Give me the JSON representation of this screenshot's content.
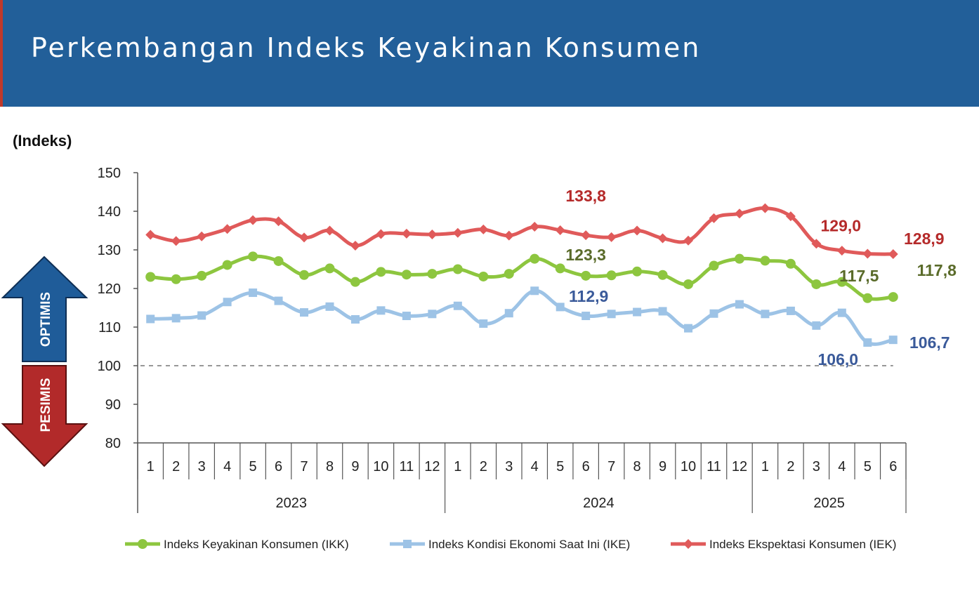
{
  "header": {
    "title": "Perkembangan Indeks Keyakinan Konsumen"
  },
  "colors": {
    "header_bg": "#225f99",
    "ikk": "#8dc63f",
    "ike": "#9dc3e6",
    "iek": "#e05a5a",
    "ikk_label": "#5a6b2a",
    "ike_label": "#3a5a9a",
    "iek_label": "#b52a2a",
    "optimis": "#1f5c99",
    "pesimis": "#b22a2a"
  },
  "chart_data": {
    "type": "line",
    "ylabel": "(Indeks)",
    "ylim": [
      80,
      150
    ],
    "yticks": [
      80,
      90,
      100,
      110,
      120,
      130,
      140,
      150
    ],
    "grid": false,
    "reference_line": {
      "value": 100,
      "style": "dashed"
    },
    "categories": [
      "1",
      "2",
      "3",
      "4",
      "5",
      "6",
      "7",
      "8",
      "9",
      "10",
      "11",
      "12",
      "1",
      "2",
      "3",
      "4",
      "5",
      "6",
      "7",
      "8",
      "9",
      "10",
      "11",
      "12",
      "1",
      "2",
      "3",
      "4",
      "5",
      "6"
    ],
    "years": [
      {
        "label": "2023",
        "months": 12
      },
      {
        "label": "2024",
        "months": 12
      },
      {
        "label": "2025",
        "months": 6
      }
    ],
    "legend_position": "bottom",
    "series": [
      {
        "name": "Indeks Keyakinan Konsumen (IKK)",
        "color": "#8dc63f",
        "marker": "circle",
        "values": [
          123.0,
          122.4,
          123.3,
          126.1,
          128.3,
          127.1,
          123.5,
          125.2,
          121.7,
          124.3,
          123.6,
          123.8,
          125.0,
          123.1,
          123.8,
          127.7,
          125.2,
          123.3,
          123.4,
          124.4,
          123.5,
          121.1,
          125.9,
          127.7,
          127.2,
          126.4,
          121.1,
          121.7,
          117.5,
          117.8
        ]
      },
      {
        "name": "Indeks Kondisi Ekonomi Saat Ini (IKE)",
        "color": "#9dc3e6",
        "marker": "square",
        "values": [
          112.1,
          112.3,
          113.0,
          116.5,
          118.9,
          116.8,
          113.8,
          115.3,
          112.0,
          114.3,
          112.9,
          113.4,
          115.5,
          110.9,
          113.6,
          119.4,
          115.2,
          112.9,
          113.4,
          113.9,
          114.1,
          109.7,
          113.5,
          115.9,
          113.4,
          114.2,
          110.4,
          113.7,
          106.0,
          106.7
        ]
      },
      {
        "name": "Indeks Ekspektasi Konsumen (IEK)",
        "color": "#e05a5a",
        "marker": "diamond",
        "values": [
          133.9,
          132.3,
          133.5,
          135.4,
          137.7,
          137.4,
          133.2,
          135.0,
          131.1,
          134.1,
          134.2,
          134.0,
          134.4,
          135.3,
          133.7,
          136.0,
          135.1,
          133.8,
          133.3,
          135.0,
          133.0,
          132.4,
          138.2,
          139.4,
          140.8,
          138.7,
          131.6,
          129.8,
          129.0,
          128.9
        ]
      }
    ],
    "annotations": [
      {
        "text": "133,8",
        "series": 2,
        "index": 17
      },
      {
        "text": "123,3",
        "series": 0,
        "index": 17
      },
      {
        "text": "112,9",
        "series": 1,
        "index": 17
      },
      {
        "text": "129,0",
        "series": 2,
        "index": 28
      },
      {
        "text": "128,9",
        "series": 2,
        "index": 29
      },
      {
        "text": "117,5",
        "series": 0,
        "index": 28
      },
      {
        "text": "117,8",
        "series": 0,
        "index": 29
      },
      {
        "text": "106,0",
        "series": 1,
        "index": 28
      },
      {
        "text": "106,7",
        "series": 1,
        "index": 29
      }
    ],
    "zones": {
      "upper": "OPTIMIS",
      "lower": "PESIMIS"
    }
  }
}
